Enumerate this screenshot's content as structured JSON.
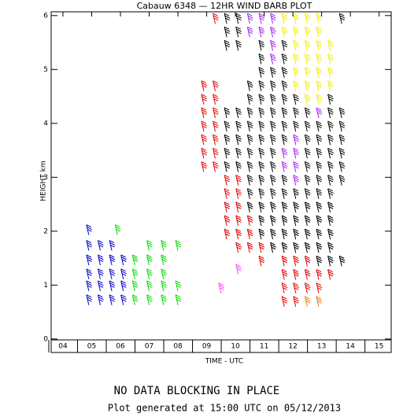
{
  "chart_data": {
    "type": "wind-barb",
    "title": "Cabauw 6348 — 12HR WIND BARB PLOT",
    "x_label": "TIME - UTC",
    "y_label": "HEIGHT km",
    "notice": "NO DATA BLOCKING IN PLACE",
    "footer": "Plot generated at 15:00 UTC on 05/12/2013",
    "xlim": [
      3.59,
      15.42
    ],
    "xticks": [
      {
        "value": 4,
        "label": "04"
      },
      {
        "value": 5,
        "label": "05"
      },
      {
        "value": 6,
        "label": "06"
      },
      {
        "value": 7,
        "label": "07"
      },
      {
        "value": 8,
        "label": "08"
      },
      {
        "value": 9,
        "label": "09"
      },
      10,
      11,
      12,
      13,
      14,
      15
    ],
    "ylim": [
      -0.25,
      6.07
    ],
    "yticks": [
      0,
      1,
      2,
      3,
      4,
      5,
      6
    ],
    "series": [
      {
        "color": "#0000c8",
        "x": [
          4.9,
          4.9,
          4.9,
          4.9,
          4.9,
          4.9,
          5.3,
          5.3,
          5.3,
          5.3,
          5.3,
          5.7,
          5.7,
          5.7,
          5.7,
          5.7,
          6.1,
          6.1,
          6.1,
          6.1
        ],
        "values": [
          0.63,
          0.89,
          1.11,
          1.37,
          1.64,
          1.93,
          0.63,
          0.89,
          1.11,
          1.37,
          1.64,
          0.63,
          0.89,
          1.11,
          1.37,
          1.64,
          0.63,
          0.89,
          1.11,
          1.37
        ]
      },
      {
        "color": "#00d800",
        "x": [
          5.9,
          6.5,
          6.5,
          6.5,
          6.5,
          7.0,
          7.0,
          7.0,
          7.0,
          7.0,
          7.5,
          7.5,
          7.5,
          7.5,
          7.5,
          8.0,
          8.0,
          8.0
        ],
        "values": [
          1.93,
          0.63,
          0.89,
          1.11,
          1.37,
          0.63,
          0.89,
          1.11,
          1.37,
          1.64,
          0.63,
          0.89,
          1.11,
          1.37,
          1.64,
          0.63,
          0.89,
          1.64
        ]
      },
      {
        "color": "#e00000",
        "x": [
          8.9,
          8.9,
          8.9,
          8.9,
          8.9,
          8.9,
          8.9,
          9.3,
          9.3,
          9.3,
          9.3,
          9.3,
          9.3,
          9.3,
          9.3,
          9.7,
          9.7,
          9.7,
          9.7,
          9.7,
          10.1,
          10.1,
          10.1,
          10.1,
          10.1,
          10.1,
          10.5,
          10.5,
          10.5,
          10.9,
          10.9,
          11.7,
          11.7,
          11.7,
          11.7,
          12.1,
          12.1,
          12.1,
          12.1,
          12.5,
          12.5,
          12.5,
          12.9,
          12.9,
          13.3
        ],
        "values": [
          3.1,
          3.35,
          3.6,
          3.85,
          4.1,
          4.35,
          4.6,
          3.1,
          3.35,
          3.6,
          3.85,
          4.1,
          4.35,
          4.6,
          5.85,
          1.85,
          2.1,
          2.35,
          2.6,
          2.85,
          1.6,
          1.85,
          2.1,
          2.35,
          2.6,
          2.85,
          1.6,
          1.85,
          2.1,
          1.35,
          1.6,
          0.6,
          0.85,
          1.1,
          1.35,
          0.6,
          0.85,
          1.1,
          1.35,
          0.85,
          1.1,
          1.35,
          0.85,
          1.1,
          1.1
        ]
      },
      {
        "color": "#000000",
        "x": [
          9.7,
          9.7,
          9.7,
          9.7,
          9.7,
          9.7,
          9.7,
          9.7,
          10.1,
          10.1,
          10.1,
          10.1,
          10.1,
          10.1,
          10.1,
          10.1,
          10.5,
          10.5,
          10.5,
          10.5,
          10.5,
          10.5,
          10.5,
          10.5,
          10.5,
          10.5,
          10.9,
          10.9,
          10.9,
          10.9,
          10.9,
          10.9,
          10.9,
          10.9,
          10.9,
          10.9,
          10.9,
          10.9,
          10.9,
          10.9,
          10.9,
          11.3,
          11.3,
          11.3,
          11.3,
          11.3,
          11.3,
          11.3,
          11.3,
          11.3,
          11.3,
          11.3,
          11.3,
          11.3,
          11.3,
          11.7,
          11.7,
          11.7,
          11.7,
          11.7,
          11.7,
          11.7,
          11.7,
          11.7,
          11.7,
          11.7,
          11.7,
          11.7,
          11.7,
          12.1,
          12.1,
          12.1,
          12.1,
          12.1,
          12.1,
          12.1,
          12.1,
          12.5,
          12.5,
          12.5,
          12.5,
          12.5,
          12.5,
          12.5,
          12.5,
          12.5,
          12.5,
          12.5,
          12.9,
          12.9,
          12.9,
          12.9,
          12.9,
          12.9,
          12.9,
          12.9,
          12.9,
          12.9,
          12.9,
          13.3,
          13.3,
          13.3,
          13.3,
          13.3,
          13.3,
          13.3,
          13.3,
          13.3,
          13.3,
          13.3,
          13.3,
          13.3,
          13.7,
          13.7,
          13.7,
          13.7,
          13.7,
          13.7,
          13.7,
          13.7
        ],
        "values": [
          3.1,
          3.35,
          3.6,
          3.85,
          4.1,
          5.35,
          5.6,
          5.85,
          3.1,
          3.35,
          3.6,
          3.85,
          4.1,
          5.35,
          5.6,
          5.85,
          2.35,
          2.6,
          2.85,
          3.1,
          3.35,
          3.6,
          3.85,
          4.1,
          4.35,
          4.6,
          1.85,
          2.1,
          2.35,
          2.6,
          2.85,
          3.1,
          3.35,
          3.6,
          3.85,
          4.1,
          4.35,
          4.6,
          4.85,
          5.1,
          5.35,
          1.6,
          1.85,
          2.1,
          2.35,
          2.6,
          2.85,
          3.1,
          3.35,
          3.6,
          3.85,
          4.1,
          4.35,
          4.6,
          4.85,
          1.6,
          1.85,
          2.1,
          2.35,
          2.6,
          2.85,
          3.6,
          3.85,
          4.1,
          4.35,
          4.6,
          4.85,
          5.1,
          5.35,
          1.6,
          1.85,
          2.1,
          2.35,
          2.6,
          3.85,
          4.1,
          4.35,
          1.6,
          1.85,
          2.1,
          2.35,
          2.6,
          2.85,
          3.1,
          3.35,
          3.6,
          3.85,
          4.1,
          1.35,
          1.6,
          1.85,
          2.1,
          2.35,
          2.6,
          2.85,
          3.1,
          3.35,
          3.6,
          3.85,
          1.35,
          1.6,
          1.85,
          2.1,
          2.35,
          2.6,
          2.85,
          3.1,
          3.35,
          3.6,
          3.85,
          4.1,
          4.35,
          1.35,
          2.85,
          3.1,
          3.35,
          3.6,
          3.85,
          4.1,
          5.85
        ]
      },
      {
        "color": "#a020f0",
        "x": [
          10.5,
          10.5,
          10.9,
          10.9,
          11.3,
          11.3,
          11.3,
          11.3,
          11.7,
          11.7,
          12.1,
          12.1,
          12.1,
          12.1,
          12.9
        ],
        "values": [
          5.6,
          5.85,
          5.6,
          5.85,
          5.1,
          5.35,
          5.6,
          5.85,
          3.1,
          3.35,
          2.85,
          3.1,
          3.35,
          3.6,
          4.1
        ]
      },
      {
        "color": "#f0f000",
        "x": [
          11.7,
          11.7,
          12.1,
          12.1,
          12.1,
          12.1,
          12.1,
          12.1,
          12.5,
          12.5,
          12.5,
          12.5,
          12.5,
          12.5,
          12.5,
          12.9,
          12.9,
          12.9,
          12.9,
          12.9,
          12.9,
          12.9,
          13.3,
          13.3,
          13.3,
          13.3
        ],
        "values": [
          5.6,
          5.85,
          4.6,
          4.85,
          5.1,
          5.35,
          5.6,
          5.85,
          4.35,
          4.6,
          4.85,
          5.1,
          5.35,
          5.6,
          5.85,
          4.35,
          4.6,
          4.85,
          5.1,
          5.35,
          5.6,
          5.85,
          4.6,
          4.85,
          5.1,
          5.35
        ]
      },
      {
        "color": "#e08000",
        "x": [
          12.5,
          12.9
        ],
        "values": [
          0.6,
          0.6
        ]
      },
      {
        "color": "#ff40ff",
        "x": [
          9.5,
          10.1
        ],
        "values": [
          0.85,
          1.2
        ]
      }
    ]
  }
}
